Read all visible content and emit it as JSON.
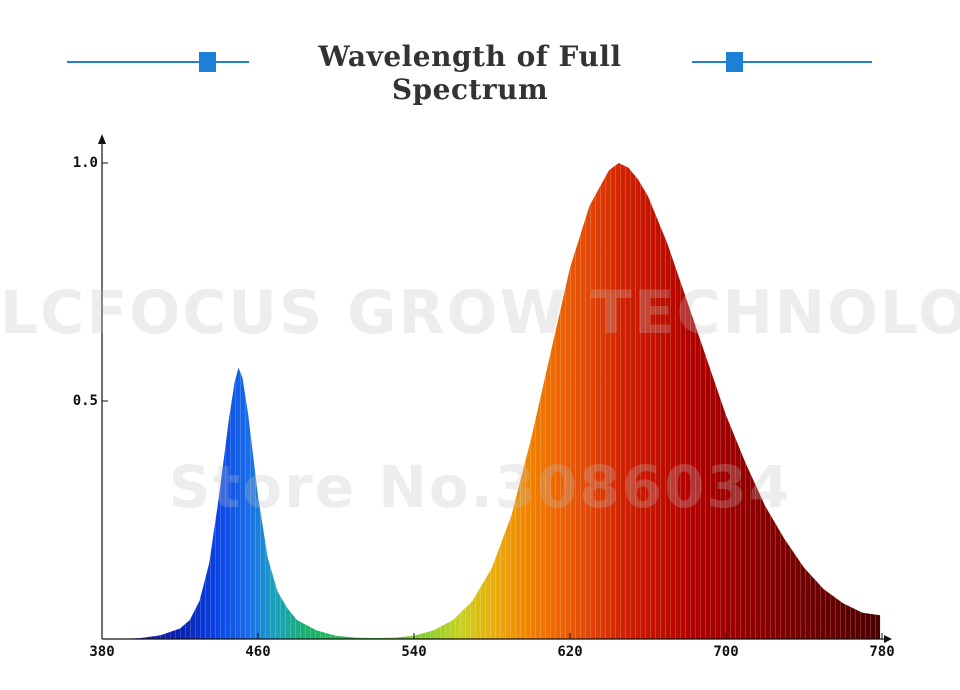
{
  "header": {
    "title": "Wavelength of Full Spectrum",
    "accent_color": "#1e7fd6"
  },
  "watermark": {
    "line1": "LCFOCUS GROW TECHNOLOGY",
    "line2": "Store No.3086034"
  },
  "chart_data": {
    "type": "area",
    "title": "Wavelength of Full Spectrum",
    "xlabel": "",
    "ylabel": "",
    "xlim": [
      380,
      780
    ],
    "ylim": [
      0,
      1.0
    ],
    "x_ticks": [
      380,
      460,
      540,
      620,
      700,
      780
    ],
    "y_ticks": [
      0.5,
      1.0
    ],
    "y_tick_labels": [
      "0.5",
      "1.0"
    ],
    "grid": false,
    "x": [
      380,
      390,
      400,
      410,
      420,
      425,
      430,
      435,
      440,
      445,
      448,
      450,
      452,
      455,
      460,
      465,
      470,
      475,
      480,
      490,
      500,
      510,
      520,
      530,
      540,
      550,
      560,
      570,
      580,
      590,
      600,
      610,
      620,
      630,
      640,
      645,
      650,
      655,
      660,
      670,
      680,
      690,
      700,
      710,
      720,
      730,
      740,
      750,
      760,
      770,
      779
    ],
    "values": [
      0,
      0,
      0.002,
      0.008,
      0.022,
      0.04,
      0.08,
      0.16,
      0.3,
      0.46,
      0.54,
      0.57,
      0.55,
      0.47,
      0.3,
      0.17,
      0.1,
      0.065,
      0.04,
      0.018,
      0.007,
      0.003,
      0.002,
      0.003,
      0.007,
      0.018,
      0.04,
      0.08,
      0.15,
      0.26,
      0.42,
      0.6,
      0.78,
      0.91,
      0.985,
      1.0,
      0.99,
      0.965,
      0.93,
      0.83,
      0.71,
      0.59,
      0.47,
      0.37,
      0.28,
      0.21,
      0.15,
      0.105,
      0.075,
      0.055,
      0.05
    ]
  }
}
